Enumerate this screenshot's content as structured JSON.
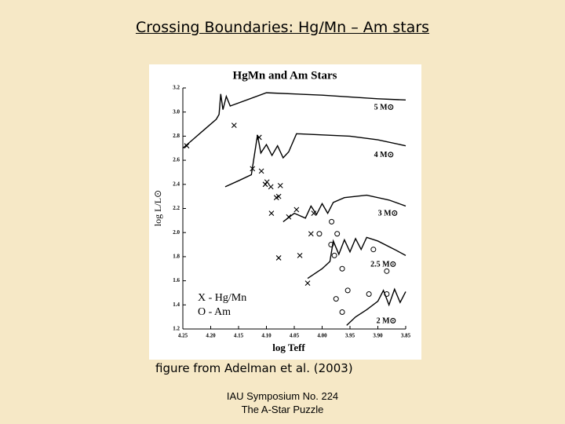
{
  "slide": {
    "title": "Crossing Boundaries:  Hg/Mn – Am stars",
    "caption": "figure from Adelman et al. (2003)",
    "footer": [
      "IAU Symposium No. 224",
      "The A-Star Puzzle"
    ]
  },
  "chart_data": {
    "type": "line",
    "title": "HgMn and Am Stars",
    "x_label": "log Teff",
    "y_label": "log L/L⊙",
    "xlim": [
      4.25,
      3.85
    ],
    "xticks": [
      {
        "value": 4.25,
        "label": "4.25"
      },
      {
        "value": 4.2,
        "label": "4.20"
      },
      {
        "value": 4.15,
        "label": "4.15"
      },
      {
        "value": 4.1,
        "label": "4.10"
      },
      {
        "value": 4.05,
        "label": "4.05"
      },
      {
        "value": 4.0,
        "label": "4.00"
      },
      {
        "value": 3.95,
        "label": "3.95"
      },
      {
        "value": 3.9,
        "label": "3.90"
      },
      {
        "value": 3.85,
        "label": "3.85"
      }
    ],
    "ylim": [
      1.2,
      3.2
    ],
    "yticks": [
      1.2,
      1.4,
      1.6,
      1.8,
      {
        "value": 2.0,
        "label": "2.0"
      },
      2.2,
      2.4,
      2.6,
      2.8,
      {
        "value": 3.0,
        "label": "3.0"
      },
      3.2
    ],
    "series": [
      {
        "name": "5 M⊙",
        "type": "line",
        "color": "#000000",
        "x": [
          4.25,
          4.23,
          4.21,
          4.19,
          4.185,
          4.182,
          4.178,
          4.172,
          4.165,
          4.1,
          4.0,
          3.9,
          3.85
        ],
        "values": [
          2.7,
          2.78,
          2.86,
          2.94,
          2.98,
          3.15,
          3.02,
          3.13,
          3.05,
          3.16,
          3.14,
          3.11,
          3.1
        ]
      },
      {
        "name": "4 M⊙",
        "type": "line",
        "color": "#000000",
        "x": [
          4.174,
          4.15,
          4.127,
          4.116,
          4.11,
          4.1,
          4.09,
          4.08,
          4.07,
          4.06,
          4.046,
          3.95,
          3.9,
          3.85
        ],
        "values": [
          2.38,
          2.43,
          2.48,
          2.81,
          2.66,
          2.73,
          2.64,
          2.72,
          2.62,
          2.67,
          2.82,
          2.8,
          2.77,
          2.72
        ]
      },
      {
        "name": "3 M⊙",
        "type": "line",
        "color": "#000000",
        "x": [
          4.07,
          4.05,
          4.03,
          4.02,
          4.01,
          4.0,
          3.99,
          3.98,
          3.96,
          3.92,
          3.88,
          3.85
        ],
        "values": [
          2.09,
          2.16,
          2.12,
          2.22,
          2.15,
          2.24,
          2.16,
          2.25,
          2.29,
          2.31,
          2.27,
          2.22
        ]
      },
      {
        "name": "2.5 M⊙",
        "type": "line",
        "color": "#000000",
        "x": [
          4.026,
          4.0,
          3.986,
          3.98,
          3.97,
          3.96,
          3.95,
          3.94,
          3.93,
          3.92,
          3.9,
          3.87,
          3.85
        ],
        "values": [
          1.62,
          1.7,
          1.76,
          1.93,
          1.82,
          1.94,
          1.84,
          1.95,
          1.86,
          1.96,
          1.93,
          1.86,
          1.81
        ]
      },
      {
        "name": "2 M⊙",
        "type": "line",
        "color": "#000000",
        "x": [
          3.956,
          3.94,
          3.92,
          3.9,
          3.89,
          3.88,
          3.87,
          3.86,
          3.85
        ],
        "values": [
          1.23,
          1.3,
          1.36,
          1.43,
          1.52,
          1.4,
          1.53,
          1.42,
          1.51
        ]
      },
      {
        "name": "X - Hg/Mn",
        "type": "scatter",
        "marker": "x",
        "color": "#000000",
        "x": [
          4.243,
          4.158,
          4.113,
          4.125,
          4.109,
          4.102,
          4.099,
          4.092,
          4.075,
          4.082,
          4.078,
          4.091,
          4.06,
          4.046,
          4.015,
          4.02,
          4.04,
          4.078,
          4.026
        ],
        "values": [
          2.72,
          2.89,
          2.79,
          2.53,
          2.51,
          2.4,
          2.42,
          2.38,
          2.39,
          2.29,
          2.3,
          2.16,
          2.13,
          2.19,
          2.16,
          1.99,
          1.81,
          1.79,
          1.58
        ]
      },
      {
        "name": "O - Am",
        "type": "scatter",
        "marker": "o",
        "color": "#000000",
        "x": [
          3.983,
          4.005,
          3.973,
          3.984,
          3.978,
          3.964,
          3.975,
          3.954,
          3.908,
          3.884,
          3.884,
          3.964,
          3.916
        ],
        "values": [
          2.09,
          1.99,
          1.99,
          1.9,
          1.81,
          1.7,
          1.45,
          1.52,
          1.86,
          1.68,
          1.49,
          1.34,
          1.49
        ]
      }
    ]
  }
}
